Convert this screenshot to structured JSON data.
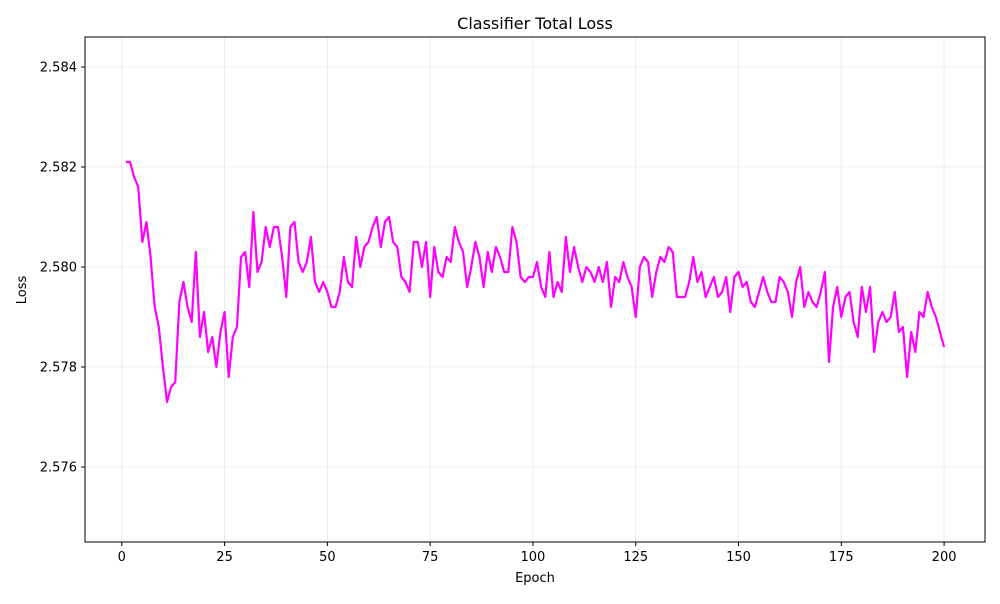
{
  "chart_data": {
    "type": "line",
    "title": "Classifier Total Loss",
    "x_label": "Epoch",
    "y_label": "Loss",
    "x": [
      1,
      2,
      3,
      4,
      5,
      6,
      7,
      8,
      9,
      10,
      11,
      12,
      13,
      14,
      15,
      16,
      17,
      18,
      19,
      20,
      21,
      22,
      23,
      24,
      25,
      26,
      27,
      28,
      29,
      30,
      31,
      32,
      33,
      34,
      35,
      36,
      37,
      38,
      39,
      40,
      41,
      42,
      43,
      44,
      45,
      46,
      47,
      48,
      49,
      50,
      51,
      52,
      53,
      54,
      55,
      56,
      57,
      58,
      59,
      60,
      61,
      62,
      63,
      64,
      65,
      66,
      67,
      68,
      69,
      70,
      71,
      72,
      73,
      74,
      75,
      76,
      77,
      78,
      79,
      80,
      81,
      82,
      83,
      84,
      85,
      86,
      87,
      88,
      89,
      90,
      91,
      92,
      93,
      94,
      95,
      96,
      97,
      98,
      99,
      100,
      101,
      102,
      103,
      104,
      105,
      106,
      107,
      108,
      109,
      110,
      111,
      112,
      113,
      114,
      115,
      116,
      117,
      118,
      119,
      120,
      121,
      122,
      123,
      124,
      125,
      126,
      127,
      128,
      129,
      130,
      131,
      132,
      133,
      134,
      135,
      136,
      137,
      138,
      139,
      140,
      141,
      142,
      143,
      144,
      145,
      146,
      147,
      148,
      149,
      150,
      151,
      152,
      153,
      154,
      155,
      156,
      157,
      158,
      159,
      160,
      161,
      162,
      163,
      164,
      165,
      166,
      167,
      168,
      169,
      170,
      171,
      172,
      173,
      174,
      175,
      176,
      177,
      178,
      179,
      180,
      181,
      182,
      183,
      184,
      185,
      186,
      187,
      188,
      189,
      190,
      191,
      192,
      193,
      194,
      195,
      196,
      197,
      198,
      199,
      200
    ],
    "series": [
      {
        "name": "Loss",
        "color": "#ff00ff",
        "values": [
          2.5821,
          2.5821,
          2.5818,
          2.5816,
          2.5805,
          2.5809,
          2.5802,
          2.5792,
          2.5788,
          2.578,
          2.5773,
          2.5776,
          2.5777,
          2.5793,
          2.5797,
          2.5792,
          2.5789,
          2.5803,
          2.5786,
          2.5791,
          2.5783,
          2.5786,
          2.578,
          2.5787,
          2.5791,
          2.5778,
          2.5786,
          2.5788,
          2.5802,
          2.5803,
          2.5796,
          2.5811,
          2.5799,
          2.5801,
          2.5808,
          2.5804,
          2.5808,
          2.5808,
          2.5802,
          2.5794,
          2.5808,
          2.5809,
          2.5801,
          2.5799,
          2.5801,
          2.5806,
          2.5797,
          2.5795,
          2.5797,
          2.5795,
          2.5792,
          2.5792,
          2.5795,
          2.5802,
          2.5797,
          2.5796,
          2.5806,
          2.58,
          2.5804,
          2.5805,
          2.5808,
          2.581,
          2.5804,
          2.5809,
          2.581,
          2.5805,
          2.5804,
          2.5798,
          2.5797,
          2.5795,
          2.5805,
          2.5805,
          2.58,
          2.5805,
          2.5794,
          2.5804,
          2.5799,
          2.5798,
          2.5802,
          2.5801,
          2.5808,
          2.5805,
          2.5803,
          2.5796,
          2.58,
          2.5805,
          2.5802,
          2.5796,
          2.5803,
          2.5799,
          2.5804,
          2.5802,
          2.5799,
          2.5799,
          2.5808,
          2.5805,
          2.5798,
          2.5797,
          2.5798,
          2.5798,
          2.5801,
          2.5796,
          2.5794,
          2.5803,
          2.5794,
          2.5797,
          2.5795,
          2.5806,
          2.5799,
          2.5804,
          2.58,
          2.5797,
          2.58,
          2.5799,
          2.5797,
          2.58,
          2.5797,
          2.5801,
          2.5792,
          2.5798,
          2.5797,
          2.5801,
          2.5798,
          2.5796,
          2.579,
          2.58,
          2.5802,
          2.5801,
          2.5794,
          2.5799,
          2.5802,
          2.5801,
          2.5804,
          2.5803,
          2.5794,
          2.5794,
          2.5794,
          2.5797,
          2.5802,
          2.5797,
          2.5799,
          2.5794,
          2.5796,
          2.5798,
          2.5794,
          2.5795,
          2.5798,
          2.5791,
          2.5798,
          2.5799,
          2.5796,
          2.5797,
          2.5793,
          2.5792,
          2.5795,
          2.5798,
          2.5795,
          2.5793,
          2.5793,
          2.5798,
          2.5797,
          2.5795,
          2.579,
          2.5797,
          2.58,
          2.5792,
          2.5795,
          2.5793,
          2.5792,
          2.5795,
          2.5799,
          2.5781,
          2.5792,
          2.5796,
          2.579,
          2.5794,
          2.5795,
          2.5789,
          2.5786,
          2.5796,
          2.5791,
          2.5796,
          2.5783,
          2.5789,
          2.5791,
          2.5789,
          2.579,
          2.5795,
          2.5787,
          2.5788,
          2.5778,
          2.5787,
          2.5783,
          2.5791,
          2.579,
          2.5795,
          2.5792,
          2.579,
          2.5787,
          2.5784
        ]
      }
    ],
    "xlim": [
      -8.95,
      209.95
    ],
    "ylim": [
      2.5745,
      2.5846
    ],
    "xticks": [
      0,
      25,
      50,
      75,
      100,
      125,
      150,
      175,
      200
    ],
    "yticks": [
      2.576,
      2.578,
      {
        "value": 2.58,
        "label": "2.580"
      },
      2.582,
      2.584
    ],
    "grid": true
  }
}
